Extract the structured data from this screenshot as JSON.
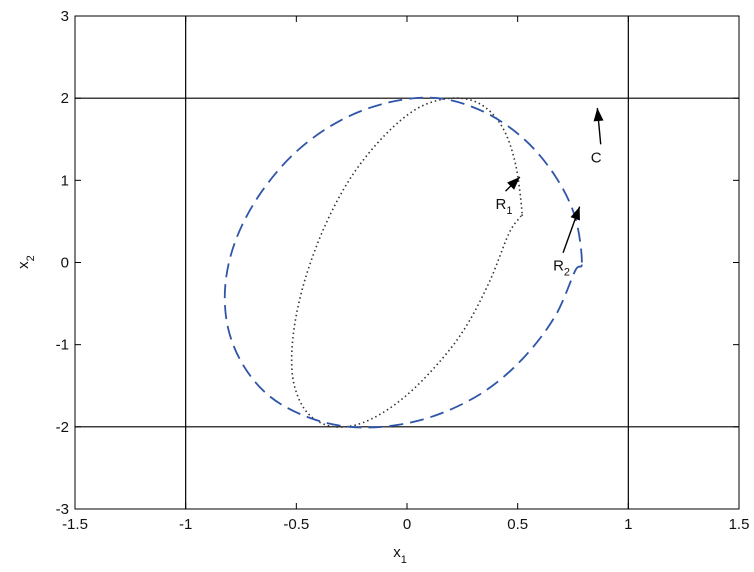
{
  "chart_data": {
    "type": "line",
    "title": "",
    "xlabel": "x",
    "xlabel_sub": "1",
    "ylabel": "x",
    "ylabel_sub": "2",
    "xlim": [
      -1.5,
      1.5
    ],
    "ylim": [
      -3,
      3
    ],
    "xticks": [
      "-1.5",
      "-1",
      "-0.5",
      "0",
      "0.5",
      "1",
      "1.5"
    ],
    "yticks": [
      "-3",
      "-2",
      "-1",
      "0",
      "1",
      "2",
      "3"
    ],
    "grid": false,
    "colors": {
      "dashed": "#2f55a8",
      "dotted": "#333333",
      "frame": "#000000"
    },
    "constraint_set_C": {
      "x1_bounds": [
        -1,
        1
      ],
      "x2_bounds": [
        -2,
        2
      ]
    },
    "series": [
      {
        "id": "R1",
        "style": "dotted",
        "x": [
          0.52,
          0.49,
          0.43,
          0.33,
          0.2,
          0.05,
          -0.1,
          -0.25,
          -0.37,
          -0.46,
          -0.51,
          -0.52,
          -0.49,
          -0.43,
          -0.33,
          -0.2,
          -0.05,
          0.1,
          0.25,
          0.37,
          0.46,
          0.51,
          0.52
        ],
        "y": [
          0.6,
          1.2,
          1.65,
          1.93,
          2.0,
          1.88,
          1.55,
          1.05,
          0.45,
          -0.2,
          -0.8,
          -1.3,
          -1.65,
          -1.88,
          -2.0,
          -1.95,
          -1.72,
          -1.35,
          -0.85,
          -0.25,
          0.35,
          0.55,
          0.6
        ]
      },
      {
        "id": "R2",
        "style": "dashed",
        "x": [
          0.79,
          0.76,
          0.67,
          0.53,
          0.35,
          0.14,
          -0.08,
          -0.3,
          -0.5,
          -0.66,
          -0.77,
          -0.82,
          -0.81,
          -0.74,
          -0.62,
          -0.45,
          -0.26,
          -0.05,
          0.16,
          0.36,
          0.53,
          0.67,
          0.76,
          0.79
        ],
        "y": [
          0.0,
          0.55,
          1.05,
          1.5,
          1.83,
          2.0,
          1.95,
          1.73,
          1.35,
          0.85,
          0.3,
          -0.25,
          -0.78,
          -1.25,
          -1.63,
          -1.88,
          -2.0,
          -1.98,
          -1.83,
          -1.55,
          -1.15,
          -0.65,
          -0.1,
          0.0
        ]
      }
    ],
    "annotations": [
      {
        "text": "R",
        "sub": "1",
        "text_at": [
          0.4,
          0.65
        ],
        "arrow_to": [
          0.51,
          1.04
        ]
      },
      {
        "text": "R",
        "sub": "2",
        "text_at": [
          0.66,
          -0.1
        ],
        "arrow_to": [
          0.78,
          0.68
        ]
      },
      {
        "text": "C",
        "sub": "",
        "text_at": [
          0.83,
          1.22
        ],
        "arrow_to": [
          0.86,
          1.88
        ]
      }
    ]
  }
}
